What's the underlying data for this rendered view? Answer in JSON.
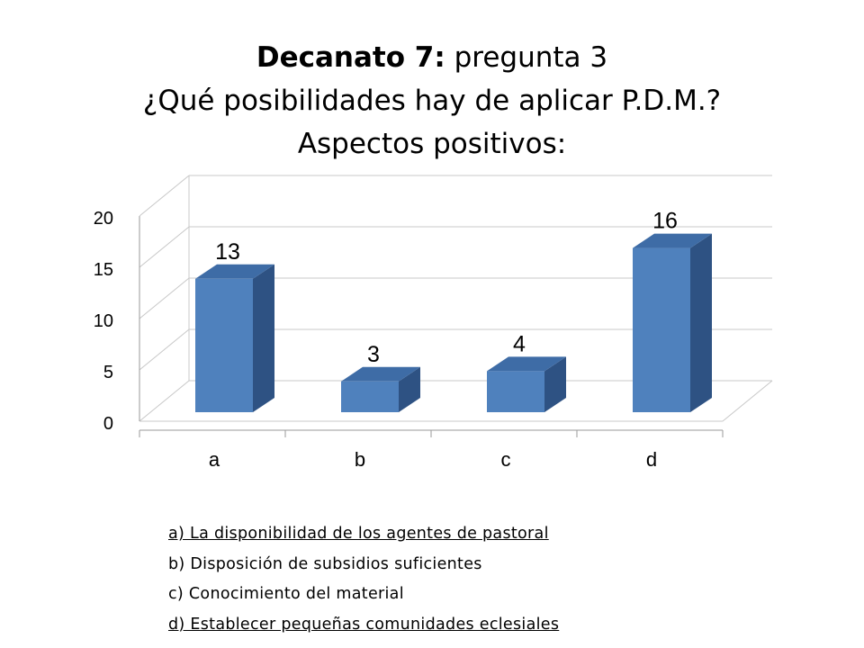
{
  "slide": {
    "title_bold": "Decanato 7:",
    "title_rest": " pregunta 3",
    "title_line2": "¿Qué posibilidades hay de aplicar P.D.M.?",
    "title_line3": "Aspectos positivos:"
  },
  "chart_data": {
    "type": "bar",
    "style": "3d-column",
    "categories": [
      "a",
      "b",
      "c",
      "d"
    ],
    "values": [
      13,
      3,
      4,
      16
    ],
    "data_labels": [
      "13",
      "3",
      "4",
      "16"
    ],
    "yticks": [
      "0",
      "5",
      "10",
      "15",
      "20"
    ],
    "ylim": [
      0,
      20
    ],
    "grid": true,
    "legend": "none",
    "colors": {
      "bar_front": "#4f81bd",
      "bar_top": "#3e6ca6",
      "bar_side": "#2e5283",
      "grid": "#c8c8c8"
    }
  },
  "notes": {
    "items": [
      "a) La disponibilidad de los agentes de pastoral",
      "b) Disposición de subsidios suficientes",
      "c) Conocimiento del material",
      "d) Establecer pequeñas comunidades eclesiales"
    ]
  }
}
